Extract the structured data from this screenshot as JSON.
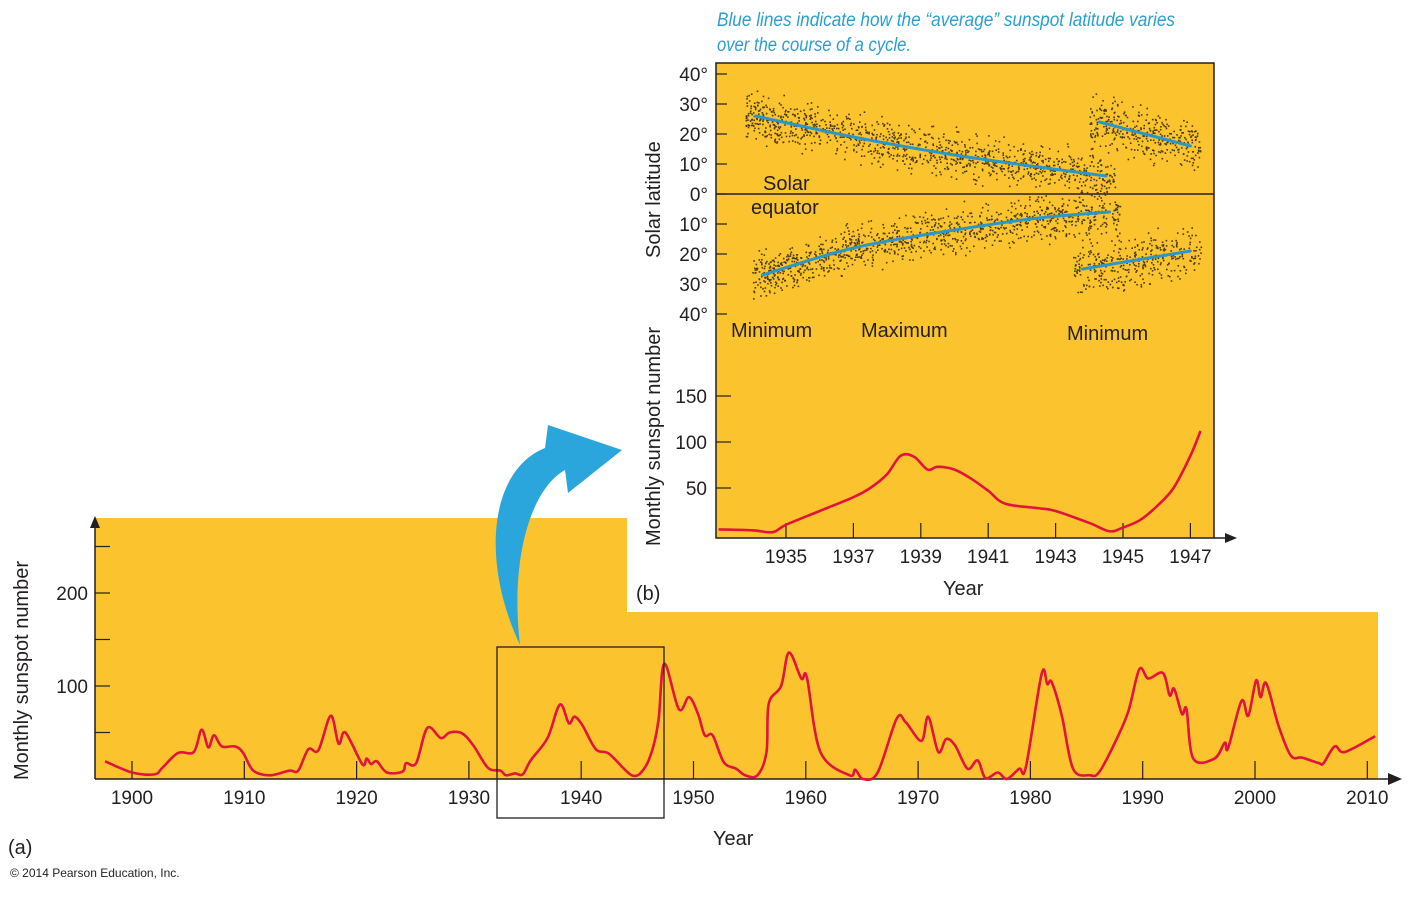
{
  "colors": {
    "panel": "#fbc42e",
    "curve": "#e0143c",
    "latitude_line": "#2a97c7",
    "arrow": "#2ba6dc",
    "caption": "#2a9fd0",
    "dots": "#4a3a14"
  },
  "caption_line1": "Blue lines indicate how the “average” sunspot latitude varies",
  "caption_line2": "over the course of a cycle.",
  "panel_a_label": "(a)",
  "panel_b_label": "(b)",
  "copyright": "© 2014 Pearson Education, Inc.",
  "chart_data": [
    {
      "type": "line",
      "panel": "a",
      "xlabel": "Year",
      "ylabel": "Monthly sunspot number",
      "x_ticks": [
        1900,
        1910,
        1920,
        1930,
        1940,
        1950,
        1960,
        1970,
        1980,
        1990,
        2000,
        2010
      ],
      "y_ticks": [
        50,
        100,
        150,
        200,
        250
      ],
      "y_tick_labels": {
        "100": "100",
        "200": "200"
      },
      "xlim": [
        1897.4,
        2012
      ],
      "ylim": [
        0,
        280
      ],
      "highlight_range": [
        1933,
        1947.8
      ],
      "series": [
        {
          "name": "Monthly sunspot number",
          "points": [
            [
              1897.6,
              19
            ],
            [
              1900,
              7
            ],
            [
              1902,
              5
            ],
            [
              1902.7,
              12
            ],
            [
              1904.1,
              28
            ],
            [
              1905.5,
              29
            ],
            [
              1906.2,
              53
            ],
            [
              1906.8,
              34
            ],
            [
              1907.3,
              47
            ],
            [
              1908,
              35
            ],
            [
              1909.2,
              35
            ],
            [
              1909.9,
              28
            ],
            [
              1910.8,
              9
            ],
            [
              1912.3,
              4
            ],
            [
              1914,
              9
            ],
            [
              1914.8,
              9
            ],
            [
              1915.7,
              32
            ],
            [
              1916.6,
              31
            ],
            [
              1917.7,
              68
            ],
            [
              1918.4,
              38
            ],
            [
              1919,
              50
            ],
            [
              1920.5,
              16
            ],
            [
              1920.9,
              22
            ],
            [
              1921.3,
              16
            ],
            [
              1921.8,
              19
            ],
            [
              1922.7,
              7
            ],
            [
              1924.1,
              8
            ],
            [
              1924.4,
              17
            ],
            [
              1925.3,
              17
            ],
            [
              1926.3,
              55
            ],
            [
              1927.5,
              44
            ],
            [
              1928.3,
              50
            ],
            [
              1929.4,
              49
            ],
            [
              1930.4,
              36
            ],
            [
              1931.7,
              12
            ],
            [
              1932.8,
              9
            ],
            [
              1933.3,
              4
            ],
            [
              1934.1,
              6
            ],
            [
              1934.8,
              5
            ],
            [
              1935.5,
              20
            ],
            [
              1937,
              44
            ],
            [
              1938.1,
              80
            ],
            [
              1938.9,
              60
            ],
            [
              1939.4,
              67
            ],
            [
              1940.1,
              58
            ],
            [
              1941.3,
              32
            ],
            [
              1942.5,
              27
            ],
            [
              1944.5,
              4
            ],
            [
              1945.6,
              11
            ],
            [
              1946.4,
              34
            ],
            [
              1946.9,
              65
            ],
            [
              1947.4,
              124
            ],
            [
              1948.7,
              75
            ],
            [
              1949.6,
              88
            ],
            [
              1950.4,
              70
            ],
            [
              1951,
              47
            ],
            [
              1951.7,
              47
            ],
            [
              1952.7,
              18
            ],
            [
              1953.8,
              11
            ],
            [
              1954.6,
              4
            ],
            [
              1955.7,
              4
            ],
            [
              1956.5,
              29
            ],
            [
              1956.7,
              81
            ],
            [
              1957.8,
              100
            ],
            [
              1958.5,
              136
            ],
            [
              1959.6,
              108
            ],
            [
              1960.1,
              109
            ],
            [
              1961.3,
              29
            ],
            [
              1963.9,
              4
            ],
            [
              1964.4,
              10
            ],
            [
              1965.1,
              0
            ],
            [
              1966.4,
              7
            ],
            [
              1968.1,
              65
            ],
            [
              1968.9,
              61
            ],
            [
              1970.3,
              41
            ],
            [
              1970.9,
              67
            ],
            [
              1971.8,
              29
            ],
            [
              1972.5,
              43
            ],
            [
              1973.3,
              36
            ],
            [
              1974.4,
              11
            ],
            [
              1975.3,
              20
            ],
            [
              1976,
              1
            ],
            [
              1977.1,
              7
            ],
            [
              1977.9,
              0
            ],
            [
              1979,
              11
            ],
            [
              1979.6,
              13
            ],
            [
              1981,
              113
            ],
            [
              1981.5,
              102
            ],
            [
              1981.9,
              104
            ],
            [
              1982.8,
              68
            ],
            [
              1983.8,
              11
            ],
            [
              1985.3,
              4
            ],
            [
              1986.1,
              7
            ],
            [
              1987.4,
              36
            ],
            [
              1988.7,
              72
            ],
            [
              1989.7,
              118
            ],
            [
              1990.5,
              108
            ],
            [
              1991.8,
              114
            ],
            [
              1992.4,
              90
            ],
            [
              1992.8,
              97
            ],
            [
              1993.5,
              70
            ],
            [
              1993.9,
              75
            ],
            [
              1994.5,
              22
            ],
            [
              1996.4,
              22
            ],
            [
              1997.3,
              39
            ],
            [
              1997.6,
              33
            ],
            [
              1998.8,
              84
            ],
            [
              1999.4,
              68
            ],
            [
              2000.1,
              106
            ],
            [
              2000.5,
              88
            ],
            [
              2001,
              103
            ],
            [
              2002.1,
              57
            ],
            [
              2003.2,
              25
            ],
            [
              2004.2,
              23
            ],
            [
              2005.7,
              17
            ],
            [
              2006.1,
              17
            ],
            [
              2007.1,
              35
            ],
            [
              2008,
              29
            ],
            [
              2010.7,
              46
            ]
          ]
        }
      ]
    },
    {
      "type": "line",
      "panel": "b-bottom",
      "xlabel": "Year",
      "ylabel": "Monthly sunspot number",
      "x_ticks": [
        1935,
        1937,
        1939,
        1941,
        1943,
        1945,
        1947
      ],
      "y_ticks": [
        50,
        100,
        150
      ],
      "xlim": [
        1932.9,
        1947.6
      ],
      "ylim": [
        0,
        150
      ],
      "annotations": [
        "Minimum",
        "Maximum",
        "Minimum"
      ],
      "series": [
        {
          "name": "Monthly sunspot number",
          "points": [
            [
              1933,
              5
            ],
            [
              1934,
              4
            ],
            [
              1934.6,
              2
            ],
            [
              1935,
              10
            ],
            [
              1936,
              25
            ],
            [
              1937,
              40
            ],
            [
              1937.5,
              50
            ],
            [
              1938,
              65
            ],
            [
              1938.4,
              85
            ],
            [
              1938.8,
              84
            ],
            [
              1939.2,
              70
            ],
            [
              1939.5,
              73
            ],
            [
              1940,
              70
            ],
            [
              1940.5,
              60
            ],
            [
              1941,
              47
            ],
            [
              1941.5,
              33
            ],
            [
              1942.5,
              28
            ],
            [
              1943,
              25
            ],
            [
              1944,
              12
            ],
            [
              1944.6,
              3
            ],
            [
              1945,
              7
            ],
            [
              1945.5,
              15
            ],
            [
              1946,
              30
            ],
            [
              1946.5,
              50
            ],
            [
              1947,
              85
            ],
            [
              1947.3,
              112
            ]
          ]
        }
      ]
    },
    {
      "type": "scatter",
      "panel": "b-top",
      "ylabel": "Solar latitude",
      "y_ticks": [
        40,
        30,
        20,
        10,
        0,
        -10,
        -20,
        -30,
        -40
      ],
      "y_tick_labels": [
        "40°",
        "30°",
        "20°",
        "10°",
        "0°",
        "10°",
        "20°",
        "30°",
        "40°"
      ],
      "ylim": [
        -40,
        40
      ],
      "equator_label": [
        "Solar",
        "equator"
      ],
      "average_latitude_lines": [
        {
          "name": "north old cycle",
          "points": [
            [
              1934.1,
              26
            ],
            [
              1937,
              19
            ],
            [
              1940,
              13
            ],
            [
              1942.5,
              9
            ],
            [
              1944.5,
              6
            ]
          ]
        },
        {
          "name": "south old cycle",
          "points": [
            [
              1934.3,
              -27
            ],
            [
              1937,
              -18
            ],
            [
              1940,
              -12
            ],
            [
              1942.5,
              -8
            ],
            [
              1944.6,
              -6
            ]
          ]
        },
        {
          "name": "north new cycle",
          "points": [
            [
              1944.3,
              24
            ],
            [
              1947,
              16
            ]
          ]
        },
        {
          "name": "south new cycle",
          "points": [
            [
              1943.8,
              -25
            ],
            [
              1947,
              -19
            ]
          ]
        }
      ]
    }
  ]
}
